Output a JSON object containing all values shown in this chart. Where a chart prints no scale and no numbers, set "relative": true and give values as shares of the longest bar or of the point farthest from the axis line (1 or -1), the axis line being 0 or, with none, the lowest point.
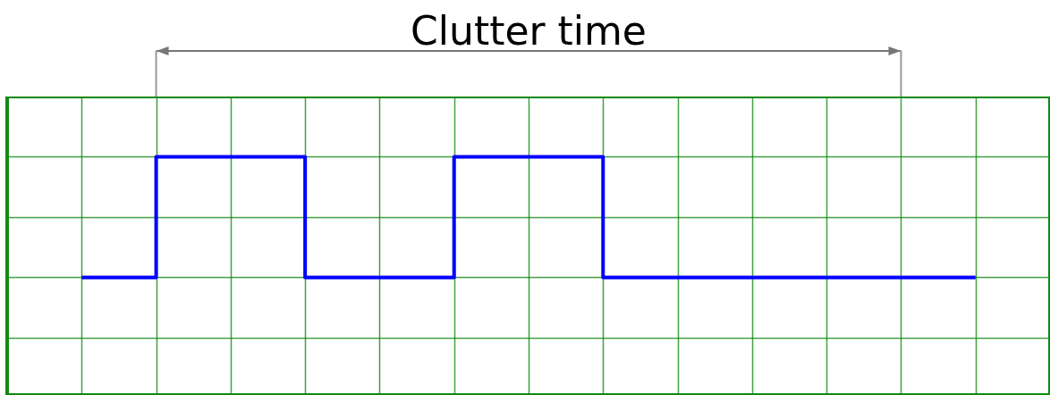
{
  "chart_data": {
    "type": "step",
    "relative": true,
    "categories": [
      null,
      null,
      null,
      null,
      null,
      null,
      null,
      null,
      null,
      null,
      null,
      null,
      null
    ],
    "values": [
      0,
      1,
      1,
      0,
      0,
      1,
      1,
      0,
      0,
      0,
      0,
      0,
      0
    ],
    "color": "#0000ff",
    "grid": true,
    "annotations": [
      "Clutter time"
    ]
  }
}
